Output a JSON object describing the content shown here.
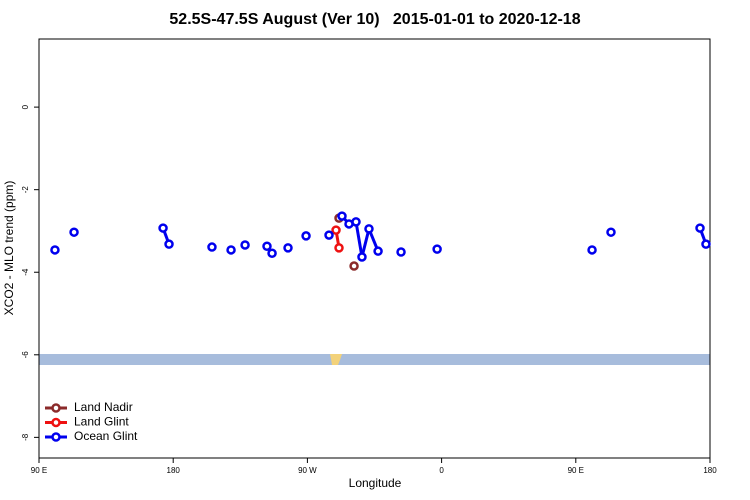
{
  "chart_data": {
    "type": "line",
    "title": "52.5S-47.5S August (Ver 10)   2015-01-01 to 2020-12-18",
    "x_label": "Longitude",
    "y_label": "XCO2 - MLO trend (ppm)",
    "xlim": [
      90,
      540
    ],
    "ylim": [
      -8.5,
      1.65
    ],
    "xticks": [
      {
        "value": 90,
        "label": "90 E"
      },
      180,
      {
        "value": 270,
        "label": "90 W"
      },
      {
        "value": 360,
        "label": "0"
      },
      {
        "value": 450,
        "label": "90 E"
      },
      {
        "value": 540,
        "label": "180"
      }
    ],
    "yticks": [
      0,
      -2,
      -4,
      -6,
      -8
    ],
    "legend": "bottom-left",
    "series": [
      {
        "name": "Land Nadir",
        "color": "#8b2a2a",
        "x": [
          291.2,
          301.3
        ],
        "values": [
          -2.69,
          -3.85
        ]
      },
      {
        "name": "Land Glint",
        "color": "#ee1111",
        "x": [
          289.2,
          291.2
        ],
        "values": [
          -2.98,
          -3.41
        ]
      },
      {
        "name": "Ocean Glint",
        "color": "#0000ee",
        "x": [
          100.7,
          113.5,
          173.2,
          177.2,
          206.0,
          218.8,
          228.2,
          242.9,
          246.3,
          257.0,
          269.1,
          284.5,
          293.2,
          297.9,
          302.6,
          306.6,
          311.3,
          317.4,
          332.8,
          357.0,
          460.9,
          473.6,
          533.3,
          537.3
        ],
        "values": [
          -3.46,
          -3.03,
          -2.93,
          -3.32,
          -3.39,
          -3.46,
          -3.34,
          -3.37,
          -3.54,
          -3.41,
          -3.12,
          -3.1,
          -2.64,
          -2.83,
          -2.78,
          -3.63,
          -2.95,
          -3.49,
          -3.51,
          -3.44,
          -3.46,
          -3.03,
          -2.93,
          -3.32
        ]
      }
    ]
  }
}
